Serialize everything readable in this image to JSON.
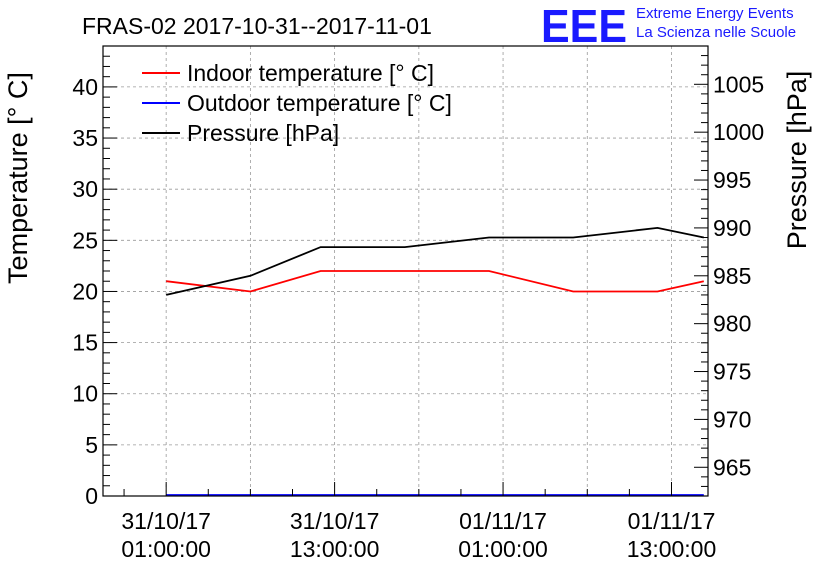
{
  "chart_data": {
    "type": "line",
    "title": "FRAS-02 2017-10-31--2017-11-01",
    "x_tick_labels": [
      {
        "date": "31/10/17",
        "time": "01:00:00"
      },
      {
        "date": "31/10/17",
        "time": "13:00:00"
      },
      {
        "date": "01/11/17",
        "time": "01:00:00"
      },
      {
        "date": "01/11/17",
        "time": "13:00:00"
      }
    ],
    "x_hours": [
      0,
      6,
      12,
      18,
      24,
      30,
      36
    ],
    "x_tick_hours": [
      0,
      12,
      24,
      36
    ],
    "xlim_hours": [
      -4.5,
      38.6
    ],
    "ylabel_left": "Temperature [° C]",
    "ylabel_right": "Pressure [hPa]",
    "ylim_left": [
      0,
      44
    ],
    "yticks_left": [
      0,
      5,
      10,
      15,
      20,
      25,
      30,
      35,
      40
    ],
    "ylim_right": [
      962,
      1009
    ],
    "yticks_right": [
      965,
      970,
      975,
      980,
      985,
      990,
      995,
      1000,
      1005
    ],
    "series": [
      {
        "name": "Indoor temperature [° C]",
        "axis": "left",
        "color": "#ff0000",
        "values": [
          21,
          20,
          22,
          22,
          22,
          20,
          20,
          21
        ],
        "x": [
          0,
          6,
          11,
          17,
          23,
          29,
          35,
          38.3
        ]
      },
      {
        "name": "Outdoor temperature [° C]",
        "axis": "left",
        "color": "#0000ff",
        "values": [
          0,
          0
        ],
        "x": [
          0,
          38.3
        ]
      },
      {
        "name": "Pressure [hPa]",
        "axis": "right",
        "color": "#000000",
        "values": [
          983,
          985,
          988,
          988,
          989,
          989,
          990,
          989
        ],
        "x": [
          0,
          6,
          11,
          17,
          23,
          29,
          35,
          38.3
        ]
      }
    ],
    "legend_position": "top-left",
    "grid": true
  },
  "logo": {
    "mark": "EEE",
    "line1": "Extreme Energy Events",
    "line2": "La Scienza nelle Scuole",
    "color": "#1a1aff"
  }
}
